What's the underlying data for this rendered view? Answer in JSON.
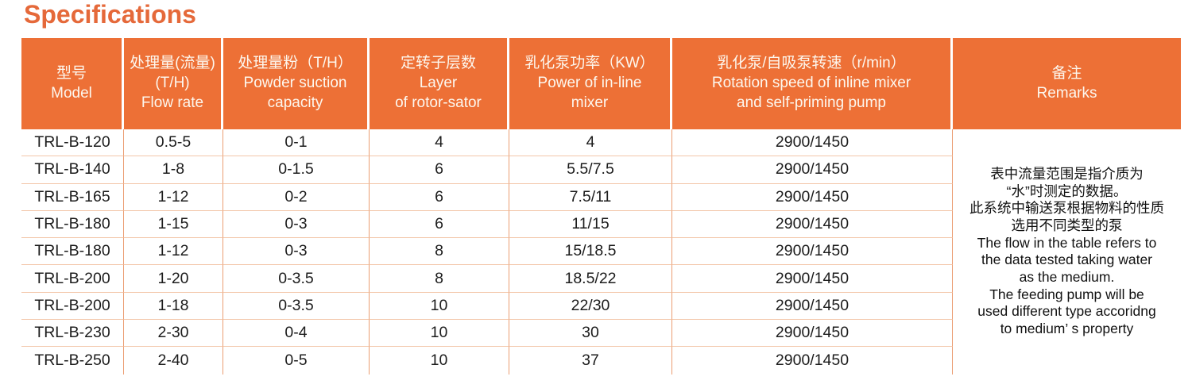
{
  "title": "Specifications",
  "colors": {
    "accent_orange": "#ed7036",
    "header_text": "#fdf7ee",
    "grid_vertical_border": "#eb9d72",
    "grid_horizontal_border": "#f3c7aa",
    "body_text": "#1c1c1c"
  },
  "table": {
    "columns": [
      {
        "id": "model",
        "lines": [
          "型号",
          "Model"
        ]
      },
      {
        "id": "flow-rate",
        "lines": [
          "处理量(流量)",
          "(T/H)",
          "Flow rate"
        ]
      },
      {
        "id": "powder-capacity",
        "lines": [
          "处理量粉（T/H）",
          "Powder suction",
          "capacity"
        ]
      },
      {
        "id": "rotor-layers",
        "lines": [
          "定转子层数",
          "Layer",
          "of rotor-sator"
        ]
      },
      {
        "id": "mixer-power",
        "lines": [
          "乳化泵功率（KW）",
          "Power of in-line",
          "mixer"
        ]
      },
      {
        "id": "rotation-speed",
        "lines": [
          "乳化泵/自吸泵转速（r/min）",
          "Rotation speed of inline mixer",
          "and self-priming pump"
        ]
      },
      {
        "id": "remarks",
        "lines": [
          "备注",
          "Remarks"
        ]
      }
    ],
    "rows": [
      [
        "TRL-B-120",
        "0.5-5",
        "0-1",
        "4",
        "4",
        "2900/1450"
      ],
      [
        "TRL-B-140",
        "1-8",
        "0-1.5",
        "6",
        "5.5/7.5",
        "2900/1450"
      ],
      [
        "TRL-B-165",
        "1-12",
        "0-2",
        "6",
        "7.5/11",
        "2900/1450"
      ],
      [
        "TRL-B-180",
        "1-15",
        "0-3",
        "6",
        "11/15",
        "2900/1450"
      ],
      [
        "TRL-B-180",
        "1-12",
        "0-3",
        "8",
        "15/18.5",
        "2900/1450"
      ],
      [
        "TRL-B-200",
        "1-20",
        "0-3.5",
        "8",
        "18.5/22",
        "2900/1450"
      ],
      [
        "TRL-B-200",
        "1-18",
        "0-3.5",
        "10",
        "22/30",
        "2900/1450"
      ],
      [
        "TRL-B-230",
        "2-30",
        "0-4",
        "10",
        "30",
        "2900/1450"
      ],
      [
        "TRL-B-250",
        "2-40",
        "0-5",
        "10",
        "37",
        "2900/1450"
      ]
    ],
    "remarks_lines": [
      "表中流量范围是指介质为",
      "“水”时测定的数据。",
      "此系统中输送泵根据物料的性质",
      "选用不同类型的泵",
      "The flow in the table refers to",
      "the data tested taking water",
      "as the medium.",
      "The feeding pump will be",
      "used different type accoridng",
      "to medium’ s property"
    ]
  }
}
